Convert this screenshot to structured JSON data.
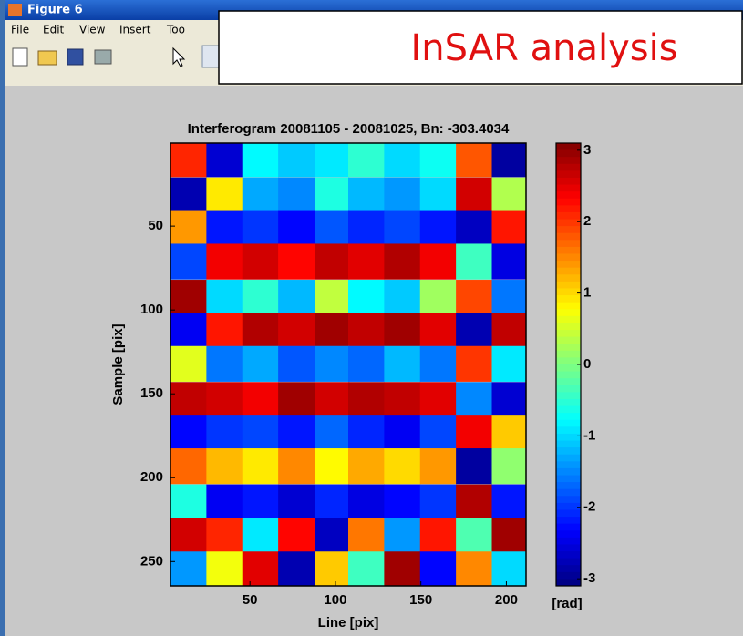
{
  "window": {
    "title": "Figure 6",
    "menu": [
      "File",
      "Edit",
      "View",
      "Insert",
      "Too"
    ]
  },
  "overlay": {
    "text": "InSAR analysis"
  },
  "chart_data": {
    "type": "heatmap",
    "title": "Interferogram 20081105 - 20081025, Bn: -303.4034",
    "x_label": "Line [pix]",
    "y_label": "Sample [pix]",
    "colorbar_label": "[rad]",
    "colormap": "jet",
    "x": [
      14,
      35,
      56,
      77,
      98,
      118,
      139,
      160,
      181,
      202
    ],
    "y": [
      10,
      31,
      51,
      71,
      92,
      112,
      132,
      153,
      173,
      193,
      214,
      234,
      254
    ],
    "z": [
      [
        2.1,
        -2.6,
        -0.8,
        -1.1,
        -0.9,
        -0.5,
        -1.0,
        -0.7,
        1.8,
        -2.9
      ],
      [
        -2.8,
        0.9,
        -1.3,
        -1.5,
        -0.6,
        -1.2,
        -1.4,
        -1.0,
        2.6,
        0.3
      ],
      [
        1.4,
        -2.2,
        -2.0,
        -2.3,
        -1.8,
        -2.1,
        -1.9,
        -2.2,
        -2.7,
        2.2
      ],
      [
        -1.9,
        2.4,
        2.6,
        2.3,
        2.7,
        2.5,
        2.8,
        2.4,
        -0.4,
        -2.5
      ],
      [
        2.9,
        -1.0,
        -0.5,
        -1.2,
        0.4,
        -0.8,
        -1.1,
        0.2,
        1.9,
        -1.6
      ],
      [
        -2.4,
        2.2,
        2.8,
        2.6,
        2.9,
        2.7,
        2.9,
        2.5,
        -2.8,
        2.7
      ],
      [
        0.6,
        -1.6,
        -1.3,
        -1.8,
        -1.5,
        -1.7,
        -1.2,
        -1.6,
        2.0,
        -0.9
      ],
      [
        2.7,
        2.6,
        2.4,
        2.9,
        2.6,
        2.8,
        2.7,
        2.5,
        -1.5,
        -2.6
      ],
      [
        -2.3,
        -2.0,
        -1.9,
        -2.2,
        -1.7,
        -2.1,
        -2.4,
        -1.9,
        2.4,
        1.1
      ],
      [
        1.7,
        1.2,
        0.9,
        1.5,
        0.8,
        1.3,
        1.0,
        1.4,
        -2.9,
        0.1
      ],
      [
        -0.6,
        -2.4,
        -2.2,
        -2.6,
        -2.1,
        -2.5,
        -2.3,
        -2.0,
        2.8,
        -2.2
      ],
      [
        2.6,
        2.1,
        -0.9,
        2.3,
        -2.7,
        1.6,
        -1.4,
        2.2,
        -0.3,
        2.9
      ],
      [
        -1.4,
        0.7,
        2.5,
        -2.8,
        1.1,
        -0.4,
        2.9,
        -2.3,
        1.5,
        -1.0
      ]
    ],
    "xlim": [
      3.5,
      211.5
    ],
    "ylim": [
      0.5,
      264.5
    ],
    "y_reversed": true,
    "xticks": [
      50,
      100,
      150,
      200
    ],
    "yticks": [
      50,
      100,
      150,
      200,
      250
    ],
    "zlim": [
      -3.1,
      3.1
    ],
    "zticks": [
      3,
      2,
      1,
      0,
      -1,
      -2,
      -3
    ]
  }
}
